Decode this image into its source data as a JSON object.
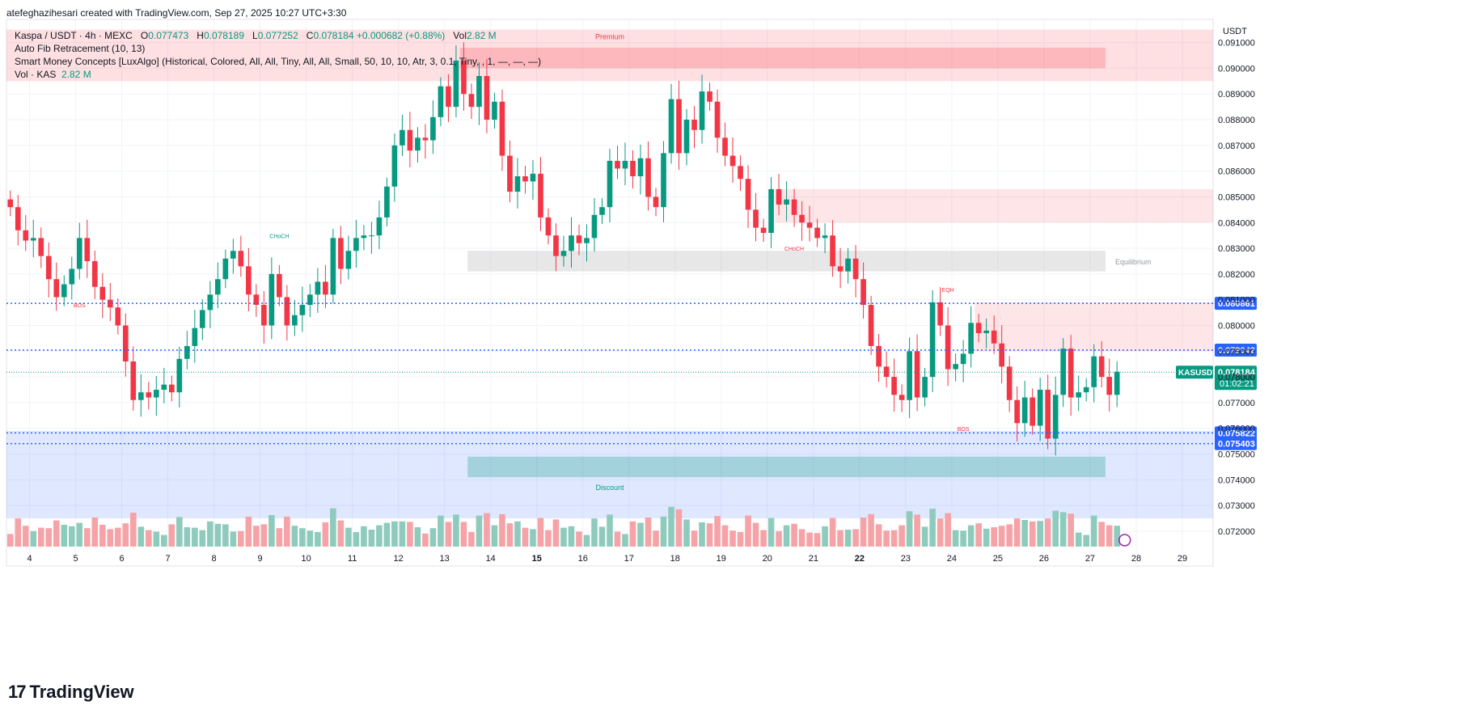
{
  "header": {
    "author_line": "atefeghazihesari created with TradingView.com, Sep 27, 2025 10:27 UTC+3:30"
  },
  "legend": {
    "symbol": "Kaspa / USDT · 4h · MEXC",
    "o_label": "O",
    "o": "0.077473",
    "h_label": "H",
    "h": "0.078189",
    "l_label": "L",
    "l": "0.077252",
    "c_label": "C",
    "c": "0.078184",
    "change": "+0.000682 (+0.88%)",
    "vol_label": "Vol",
    "vol": "2.82 M",
    "fib": "Auto Fib Retracement (10, 13)",
    "smc": "Smart Money Concepts [LuxAlgo] (Historical, Colored, All, All, Tiny, All, All, Small, 50, 10, 10, Atr, 3, 0.1, Tiny, , 1, —, —, —)",
    "vol_ind_label": "Vol · KAS",
    "vol_ind_value": "2.82 M"
  },
  "brand": {
    "name": "TradingView",
    "logo_text": "17"
  },
  "chart_data": {
    "type": "candlestick",
    "symbol": "KASUSDT",
    "timeframe": "4h",
    "currency_label": "USDT",
    "ylim": [
      0.0714,
      0.0919
    ],
    "y_ticks": [
      "0.091000",
      "0.090000",
      "0.089000",
      "0.088000",
      "0.087000",
      "0.086000",
      "0.085000",
      "0.084000",
      "0.083000",
      "0.082000",
      "0.081000",
      "0.080000",
      "0.079000",
      "0.078000",
      "0.077000",
      "0.076000",
      "0.075000",
      "0.074000",
      "0.073000",
      "0.072000"
    ],
    "y_tick_values": [
      0.091,
      0.09,
      0.089,
      0.088,
      0.087,
      0.086,
      0.085,
      0.084,
      0.083,
      0.082,
      0.081,
      0.08,
      0.079,
      0.078,
      0.077,
      0.076,
      0.075,
      0.074,
      0.073,
      0.072
    ],
    "x_ticks": [
      {
        "label": "4",
        "bar": 2.5
      },
      {
        "label": "5",
        "bar": 8.5
      },
      {
        "label": "6",
        "bar": 14.5
      },
      {
        "label": "7",
        "bar": 20.5
      },
      {
        "label": "8",
        "bar": 26.5
      },
      {
        "label": "9",
        "bar": 32.5
      },
      {
        "label": "10",
        "bar": 38.5
      },
      {
        "label": "11",
        "bar": 44.5
      },
      {
        "label": "12",
        "bar": 50.5
      },
      {
        "label": "13",
        "bar": 56.5
      },
      {
        "label": "14",
        "bar": 62.5
      },
      {
        "label": "15",
        "bar": 68.5,
        "bold": true
      },
      {
        "label": "16",
        "bar": 74.5
      },
      {
        "label": "17",
        "bar": 80.5
      },
      {
        "label": "18",
        "bar": 86.5
      },
      {
        "label": "19",
        "bar": 92.5
      },
      {
        "label": "20",
        "bar": 98.5
      },
      {
        "label": "21",
        "bar": 104.5
      },
      {
        "label": "22",
        "bar": 110.5,
        "bold": true
      },
      {
        "label": "23",
        "bar": 116.5
      },
      {
        "label": "24",
        "bar": 122.5
      },
      {
        "label": "25",
        "bar": 128.5
      },
      {
        "label": "26",
        "bar": 134.5
      },
      {
        "label": "27",
        "bar": 140.5
      },
      {
        "label": "28",
        "bar": 146.5
      },
      {
        "label": "29",
        "bar": 152.5
      }
    ],
    "bar_count_visible": 157,
    "closes": [
      0.0846,
      0.0837,
      0.0833,
      0.0834,
      0.0827,
      0.0818,
      0.0811,
      0.0816,
      0.0822,
      0.0834,
      0.0825,
      0.0815,
      0.081,
      0.0807,
      0.08,
      0.0786,
      0.0771,
      0.0774,
      0.0772,
      0.0775,
      0.0777,
      0.0774,
      0.0787,
      0.0792,
      0.0799,
      0.0806,
      0.0812,
      0.0818,
      0.0826,
      0.0829,
      0.0823,
      0.0812,
      0.0808,
      0.08,
      0.082,
      0.0811,
      0.08,
      0.0804,
      0.0808,
      0.0812,
      0.0817,
      0.0812,
      0.0834,
      0.0822,
      0.0829,
      0.0834,
      0.0835,
      0.0835,
      0.0842,
      0.0854,
      0.087,
      0.0876,
      0.0868,
      0.0873,
      0.0872,
      0.0881,
      0.0893,
      0.0885,
      0.0903,
      0.089,
      0.0885,
      0.0897,
      0.088,
      0.0887,
      0.0866,
      0.0852,
      0.0858,
      0.0856,
      0.0859,
      0.0842,
      0.0835,
      0.0827,
      0.0829,
      0.0835,
      0.0832,
      0.0834,
      0.0843,
      0.0846,
      0.0864,
      0.0861,
      0.0864,
      0.0858,
      0.0865,
      0.085,
      0.0846,
      0.0867,
      0.0888,
      0.0867,
      0.088,
      0.0876,
      0.0891,
      0.0887,
      0.0873,
      0.0866,
      0.0862,
      0.0857,
      0.0845,
      0.0838,
      0.0836,
      0.0853,
      0.0847,
      0.0849,
      0.0843,
      0.084,
      0.0838,
      0.0834,
      0.0835,
      0.0823,
      0.0821,
      0.0826,
      0.0818,
      0.0808,
      0.0792,
      0.0784,
      0.078,
      0.0773,
      0.0771,
      0.079,
      0.0772,
      0.078,
      0.0809,
      0.08,
      0.0783,
      0.0785,
      0.0789,
      0.0801,
      0.0797,
      0.0798,
      0.0793,
      0.0784,
      0.0771,
      0.0762,
      0.0772,
      0.0761,
      0.0775,
      0.0756,
      0.0773,
      0.0791,
      0.0772,
      0.0774,
      0.0776,
      0.0788,
      0.078,
      0.0773,
      0.0782
    ],
    "volume_ylim": [
      0,
      1
    ],
    "price_labels": [
      {
        "name": "level-0-080861",
        "text": "0.080861",
        "value": 0.080861,
        "color": "#2962ff"
      },
      {
        "name": "level-0-079042",
        "text": "0.079042",
        "value": 0.079042,
        "color": "#2962ff"
      },
      {
        "name": "level-0-075822",
        "text": "0.075822",
        "value": 0.075822,
        "color": "#2962ff"
      },
      {
        "name": "level-0-075403",
        "text": "0.075403",
        "value": 0.075403,
        "color": "#2962ff"
      }
    ],
    "last_price": {
      "symbol_tag": "KASUSDT",
      "price": "0.078184",
      "countdown": "01:02:21",
      "value": 0.078184,
      "color": "#089981"
    },
    "zones": [
      {
        "name": "premium-zone",
        "label": "Premium",
        "bar_from": 0,
        "bar_to": 156,
        "y_from": 0.0915,
        "y_to": 0.0895,
        "color": "#f7525f",
        "opacity": 0.18
      },
      {
        "name": "discount-zone",
        "label": "Discount",
        "bar_from": 0,
        "bar_to": 156,
        "y_from": 0.0759,
        "y_to": 0.0725,
        "color": "#2962ff",
        "opacity": 0.15
      },
      {
        "name": "equilibrium-zone",
        "label": "Equilibrium",
        "bar_from": 60,
        "bar_to": 142,
        "y_from": 0.0829,
        "y_to": 0.0821,
        "color": "#9e9e9e",
        "opacity": 0.25
      },
      {
        "name": "bear-ob-top",
        "label": "",
        "bar_from": 59,
        "bar_to": 142,
        "y_from": 0.0908,
        "y_to": 0.09,
        "color": "#f7525f",
        "opacity": 0.28
      },
      {
        "name": "bear-ob-mid",
        "label": "",
        "bar_from": 100,
        "bar_to": 156,
        "y_from": 0.0853,
        "y_to": 0.084,
        "color": "#f7525f",
        "opacity": 0.15
      },
      {
        "name": "bear-ob-low",
        "label": "",
        "bar_from": 126,
        "bar_to": 156,
        "y_from": 0.0809,
        "y_to": 0.079,
        "color": "#f7525f",
        "opacity": 0.15
      },
      {
        "name": "bull-ob",
        "label": "",
        "bar_from": 60,
        "bar_to": 142,
        "y_from": 0.0749,
        "y_to": 0.0741,
        "color": "#089981",
        "opacity": 0.28
      }
    ],
    "structure_labels": [
      {
        "name": "choch-label-1",
        "text": "CHoCH",
        "bar": 35,
        "y": 0.0834,
        "color": "#089981"
      },
      {
        "name": "bos-label-1",
        "text": "BOS",
        "bar": 9,
        "y": 0.0807,
        "color": "#f23645"
      },
      {
        "name": "choch-label-2",
        "text": "CHoCH",
        "bar": 102,
        "y": 0.0829,
        "color": "#f23645"
      },
      {
        "name": "eqh-label",
        "text": "EQH",
        "bar": 122,
        "y": 0.0813,
        "color": "#f23645"
      },
      {
        "name": "bos-label-2",
        "text": "BOS",
        "bar": 124,
        "y": 0.0759,
        "color": "#f23645"
      }
    ]
  },
  "colors": {
    "up": "#089981",
    "down": "#f23645",
    "up_vol": "#8fcbbd",
    "down_vol": "#f5a3a7",
    "grid": "#f0f3fa",
    "axis_text": "#131722"
  }
}
